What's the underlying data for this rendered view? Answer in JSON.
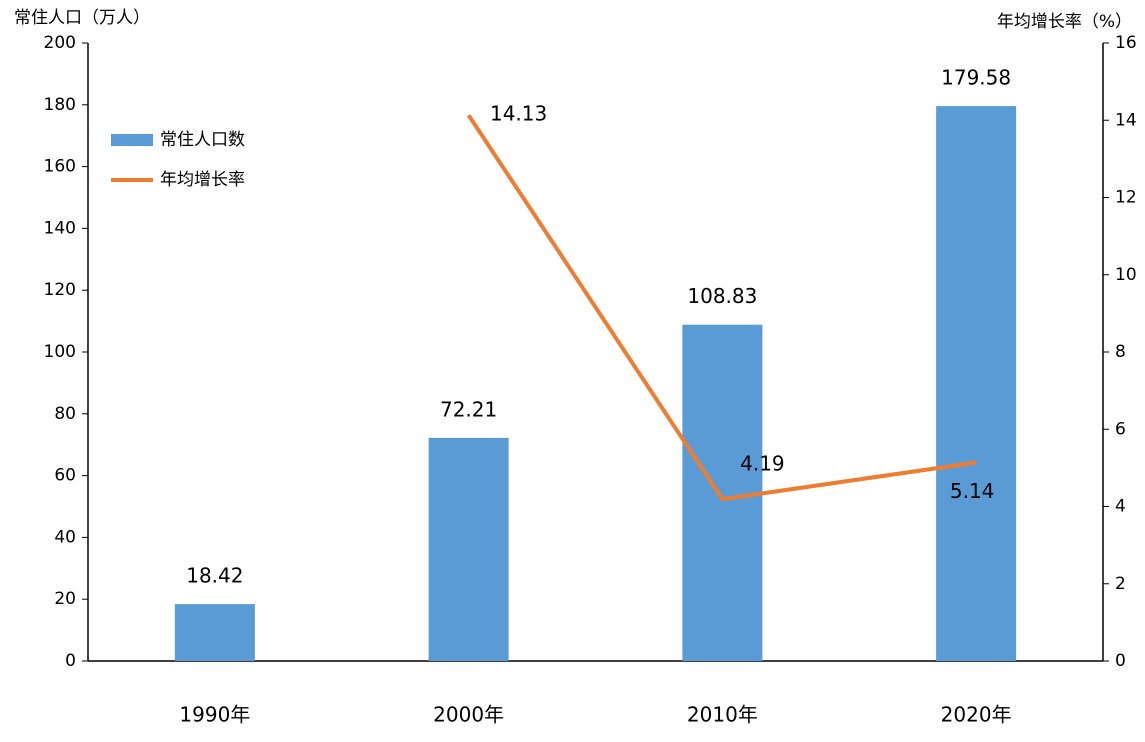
{
  "chart_data": {
    "type": "bar",
    "y_label": "常住人口（万人）",
    "y2_label": "年均增长率（%）",
    "categories": [
      "1990年",
      "2000年",
      "2010年",
      "2020年"
    ],
    "series": [
      {
        "name": "常住人口数",
        "type": "bar",
        "color": "#5b9bd5",
        "values": [
          18.42,
          72.21,
          108.83,
          179.58
        ]
      },
      {
        "name": "年均增长率",
        "type": "line",
        "axis": "y2",
        "color": "#ed7d31",
        "values": [
          null,
          14.13,
          4.19,
          5.14
        ]
      }
    ],
    "ylim": [
      0,
      200
    ],
    "yticks": [
      0,
      20,
      40,
      60,
      80,
      100,
      120,
      140,
      160,
      180,
      200
    ],
    "y2lim": [
      0,
      16
    ],
    "y2ticks": [
      0,
      2,
      4,
      6,
      8,
      10,
      12,
      14,
      16
    ],
    "grid": false,
    "legend": "upper left"
  }
}
